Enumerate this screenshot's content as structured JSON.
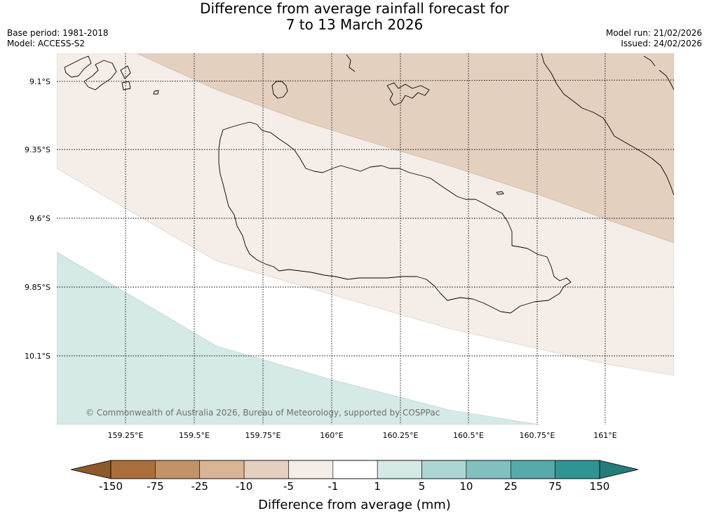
{
  "header": {
    "title_line1": "Difference from average rainfall forecast for",
    "title_line2": "7 to 13 March 2026",
    "base_period": "Base period: 1981-2018",
    "model": "Model: ACCESS-S2",
    "model_run": "Model run: 21/02/2026",
    "issued": "Issued: 24/02/2026"
  },
  "map": {
    "lat_labels": [
      "9.1°S",
      "9.35°S",
      "9.6°S",
      "9.85°S",
      "10.1°S"
    ],
    "lon_labels": [
      "159.25°E",
      "159.5°E",
      "159.75°E",
      "160°E",
      "160.25°E",
      "160.5°E",
      "160.75°E",
      "161°E"
    ],
    "lat_range": [
      -10.35,
      -9.0
    ],
    "lon_range": [
      159.0,
      161.25
    ],
    "grid": true,
    "copyright": "© Commonwealth of Australia 2026, Bureau of Meteorology, supported by COSPPac",
    "region_colors": {
      "-10_to_-5": "#e4d0bf",
      "-5_to_-1": "#f4ede8",
      "-1_to_1": "#ffffff",
      "1_to_5": "#d5e9e7"
    }
  },
  "colorbar": {
    "title": "Difference from average (mm)",
    "tick_labels": [
      "-150",
      "-75",
      "-25",
      "-10",
      "-5",
      "-1",
      "1",
      "5",
      "10",
      "25",
      "75",
      "150"
    ],
    "colors": [
      "#a86f3a",
      "#c29368",
      "#d8b593",
      "#e4d0bf",
      "#f4ede8",
      "#ffffff",
      "#d5e9e7",
      "#add5d4",
      "#82c1bf",
      "#58aaa9",
      "#2e9592"
    ],
    "extend_low_color": "#8e5a2b",
    "extend_high_color": "#267c7a"
  }
}
